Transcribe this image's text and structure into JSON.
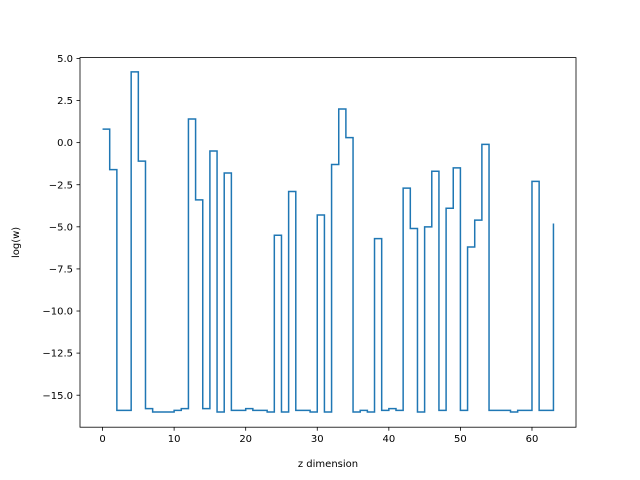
{
  "chart_data": {
    "type": "line",
    "drawstyle": "steps-post",
    "xlabel": "z dimension",
    "ylabel": "log(w)",
    "xlim": [
      -3.15,
      66.15
    ],
    "ylim": [
      -16.9,
      5.05
    ],
    "xticks": [
      0,
      10,
      20,
      30,
      40,
      50,
      60
    ],
    "xtick_labels": [
      "0",
      "10",
      "20",
      "30",
      "40",
      "50",
      "60"
    ],
    "yticks": [
      5.0,
      2.5,
      0.0,
      -2.5,
      -5.0,
      -7.5,
      -10.0,
      -12.5,
      -15.0
    ],
    "ytick_labels": [
      "5.0",
      "2.5",
      "0.0",
      "−2.5",
      "−5.0",
      "−7.5",
      "−10.0",
      "−12.5",
      "−15.0"
    ],
    "grid": false,
    "line_color": "#1f77b4",
    "series": [
      {
        "x": [
          0,
          1,
          2,
          3,
          4,
          5,
          6,
          7,
          8,
          9,
          10,
          11,
          12,
          13,
          14,
          15,
          16,
          17,
          18,
          19,
          20,
          21,
          22,
          23,
          24,
          25,
          26,
          27,
          28,
          29,
          30,
          31,
          32,
          33,
          34,
          35,
          36,
          37,
          38,
          39,
          40,
          41,
          42,
          43,
          44,
          45,
          46,
          47,
          48,
          49,
          50,
          51,
          52,
          53,
          54,
          55,
          56,
          57,
          58,
          59,
          60,
          61,
          62,
          63
        ],
        "values": [
          0.8,
          -1.6,
          -15.9,
          -15.9,
          4.2,
          -1.1,
          -15.8,
          -16.0,
          -16.0,
          -16.0,
          -15.9,
          -15.8,
          1.4,
          -3.4,
          -15.8,
          -0.5,
          -16.0,
          -1.8,
          -15.9,
          -15.9,
          -15.8,
          -15.9,
          -15.9,
          -16.0,
          -5.5,
          -16.0,
          -2.9,
          -15.9,
          -15.9,
          -16.0,
          -4.3,
          -16.0,
          -1.3,
          2.0,
          0.3,
          -16.0,
          -15.9,
          -16.0,
          -5.7,
          -15.9,
          -15.8,
          -15.9,
          -2.7,
          -5.1,
          -16.0,
          -5.0,
          -1.7,
          -15.9,
          -3.9,
          -1.5,
          -15.9,
          -6.2,
          -4.6,
          -0.1,
          -15.9,
          -15.9,
          -15.9,
          -16.0,
          -15.9,
          -15.9,
          -2.3,
          -15.9,
          -15.9,
          -4.8
        ]
      }
    ]
  }
}
